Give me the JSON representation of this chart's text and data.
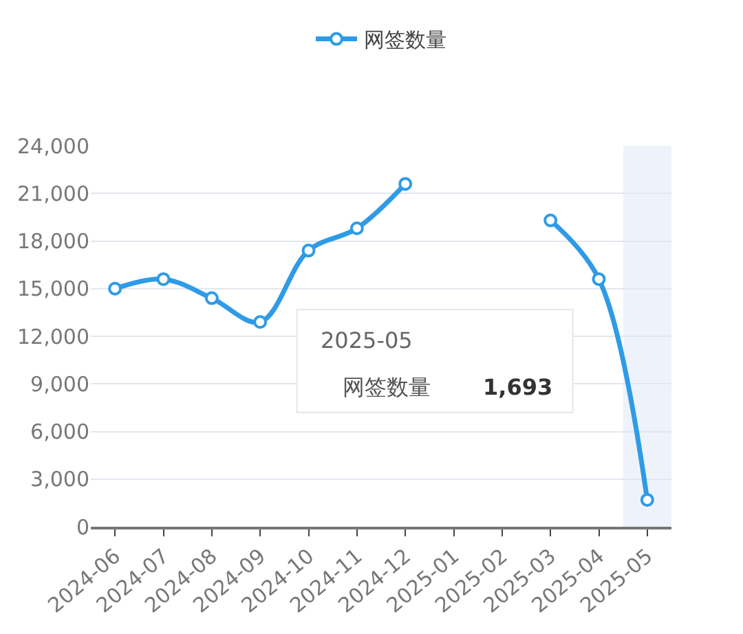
{
  "chart_data": {
    "type": "line",
    "categories": [
      "2024-06",
      "2024-07",
      "2024-08",
      "2024-09",
      "2024-10",
      "2024-11",
      "2024-12",
      "2025-01",
      "2025-02",
      "2025-03",
      "2025-04",
      "2025-05"
    ],
    "series": [
      {
        "name": "网签数量",
        "color": "#2f9be6",
        "values": [
          15000,
          15600,
          14400,
          12900,
          17400,
          18800,
          21600,
          null,
          null,
          19300,
          15600,
          1693
        ]
      }
    ],
    "ylim": [
      0,
      24000
    ],
    "yticks": [
      {
        "value": 0,
        "label": "0"
      },
      {
        "value": 3000,
        "label": "3,000"
      },
      {
        "value": 6000,
        "label": "6,000"
      },
      {
        "value": 9000,
        "label": "9,000"
      },
      {
        "value": 12000,
        "label": "12,000"
      },
      {
        "value": 15000,
        "label": "15,000"
      },
      {
        "value": 18000,
        "label": "18,000"
      },
      {
        "value": 21000,
        "label": "21,000"
      },
      {
        "value": 24000,
        "label": "24,000"
      }
    ],
    "grid": "y",
    "legend": "top",
    "marker": "circle",
    "line_style": "solid",
    "bands": [
      {
        "axis": "x",
        "from": "2025-05",
        "to": "2025-05",
        "color": "#eef3fb"
      }
    ],
    "annotations": [
      "2025-05",
      "网签数量",
      "1,693"
    ]
  }
}
